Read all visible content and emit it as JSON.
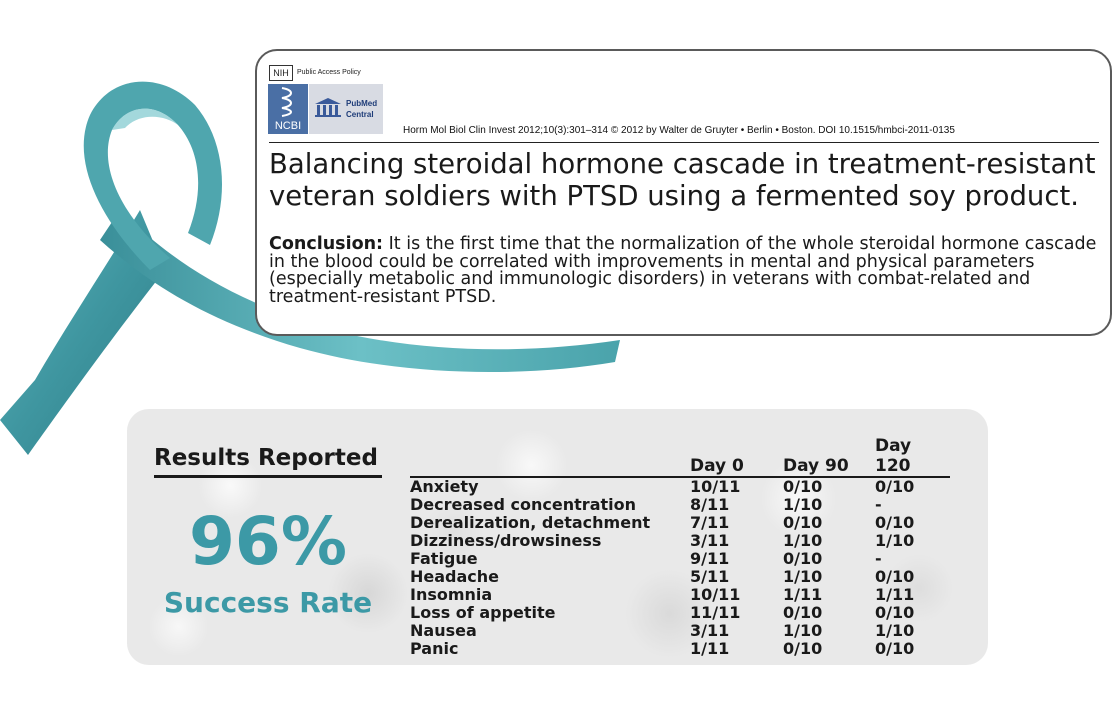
{
  "header": {
    "nih_logo": "NIH",
    "policy_label": "Public Access Policy",
    "ncbi_logo": "NCBI",
    "pmc_logo": "PubMed Central",
    "citation": "Horm Mol Biol Clin Invest 2012;10(3):301–314 © 2012 by Walter de Gruyter • Berlin • Boston. DOI 10.1515/hmbci-2011-0135"
  },
  "paper": {
    "title": "Balancing steroidal hormone cascade in treatment-resistant veteran soldiers with PTSD using a fermented soy product.",
    "conclusion_label": "Conclusion:",
    "conclusion_text": " It is the first time that the normalization of the whole steroidal hormone cascade in the blood could be correlated with improvements in mental and physical parameters (especially metabolic and immunologic disorders) in veterans with combat-related and treatment-resistant PTSD."
  },
  "results": {
    "heading": "Results Reported",
    "percent": "96%",
    "label": "Success Rate",
    "columns": [
      "",
      "Day 0",
      "Day 90",
      "Day 120"
    ],
    "rows": [
      [
        "Anxiety",
        "10/11",
        "0/10",
        "0/10"
      ],
      [
        "Decreased concentration",
        "8/11",
        "1/10",
        "-"
      ],
      [
        "Derealization, detachment",
        "7/11",
        "0/10",
        "0/10"
      ],
      [
        "Dizziness/drowsiness",
        "3/11",
        "1/10",
        "1/10"
      ],
      [
        "Fatigue",
        "9/11",
        "0/10",
        "-"
      ],
      [
        "Headache",
        "5/11",
        "1/10",
        "0/10"
      ],
      [
        "Insomnia",
        "10/11",
        "1/11",
        "1/11"
      ],
      [
        "Loss of appetite",
        "11/11",
        "0/10",
        "0/10"
      ],
      [
        "Nausea",
        "3/11",
        "1/10",
        "1/10"
      ],
      [
        "Panic",
        "1/11",
        "0/10",
        "0/10"
      ]
    ]
  },
  "colors": {
    "ribbon": "#4a9fa8",
    "accent": "#3c99a6",
    "panel": "#e9e9e9"
  },
  "icons": [
    "awareness-ribbon-icon",
    "nih-logo-icon",
    "ncbi-logo-icon",
    "pmc-logo-icon"
  ]
}
